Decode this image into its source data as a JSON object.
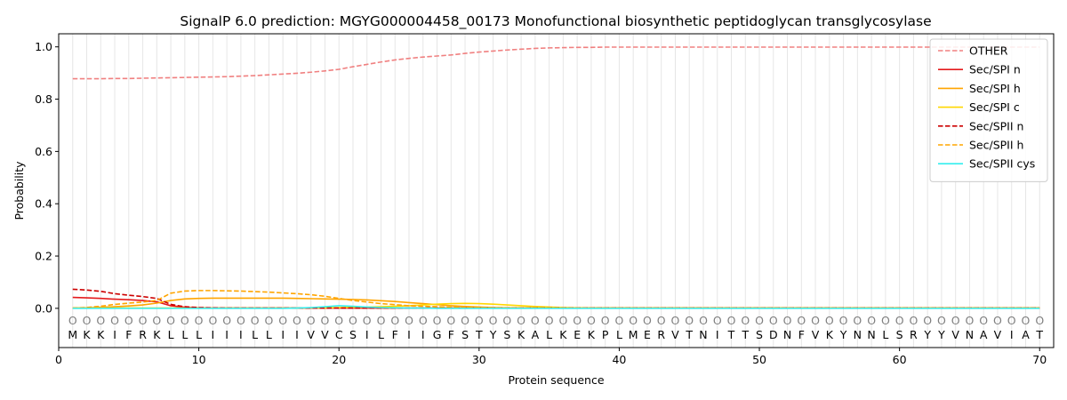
{
  "chart_data": {
    "type": "line",
    "title": "SignalP 6.0 prediction: MGYG000004458_00173 Monofunctional biosynthetic peptidoglycan transglycosylase",
    "xlabel": "Protein sequence",
    "ylabel": "Probability",
    "xlim": [
      0,
      71
    ],
    "ylim": [
      -0.15,
      1.05
    ],
    "x_ticks": [
      0,
      10,
      20,
      30,
      40,
      50,
      60,
      70
    ],
    "y_ticks": [
      0.0,
      0.2,
      0.4,
      0.6,
      0.8,
      1.0
    ],
    "x_tick_labels": [
      "0",
      "10",
      "20",
      "30",
      "40",
      "50",
      "60",
      "70"
    ],
    "y_tick_labels": [
      "0.0",
      "0.2",
      "0.4",
      "0.6",
      "0.8",
      "1.0"
    ],
    "grid": "vertical lines at each residue",
    "legend_position": "top-right",
    "sequence": [
      "M",
      "K",
      "K",
      "I",
      "F",
      "R",
      "K",
      "L",
      "L",
      "L",
      "I",
      "I",
      "I",
      "L",
      "L",
      "I",
      "I",
      "V",
      "V",
      "C",
      "S",
      "I",
      "L",
      "F",
      "I",
      "I",
      "G",
      "F",
      "S",
      "T",
      "Y",
      "S",
      "K",
      "A",
      "L",
      "K",
      "E",
      "K",
      "P",
      "L",
      "M",
      "E",
      "R",
      "V",
      "T",
      "N",
      "I",
      "T",
      "T",
      "S",
      "D",
      "N",
      "F",
      "V",
      "K",
      "Y",
      "N",
      "N",
      "L",
      "S",
      "R",
      "Y",
      "Y",
      "V",
      "N",
      "A",
      "V",
      "I",
      "A",
      "T"
    ],
    "region_marker": "O",
    "series": [
      {
        "name": "OTHER",
        "color": "#f08080",
        "dash": "dashed",
        "values": [
          0.878,
          0.878,
          0.878,
          0.879,
          0.879,
          0.88,
          0.881,
          0.882,
          0.883,
          0.884,
          0.885,
          0.886,
          0.888,
          0.89,
          0.893,
          0.896,
          0.899,
          0.903,
          0.908,
          0.914,
          0.924,
          0.933,
          0.942,
          0.95,
          0.956,
          0.961,
          0.965,
          0.969,
          0.975,
          0.98,
          0.984,
          0.988,
          0.991,
          0.994,
          0.996,
          0.997,
          0.998,
          0.998,
          0.999,
          0.999,
          0.999,
          0.999,
          0.999,
          0.999,
          0.999,
          0.999,
          0.999,
          0.999,
          0.999,
          0.999,
          0.999,
          0.999,
          0.999,
          0.999,
          0.999,
          0.999,
          0.999,
          0.999,
          0.999,
          0.999,
          0.999,
          0.999,
          0.999,
          0.999,
          0.999,
          0.999,
          0.999,
          0.999,
          0.999,
          0.999
        ]
      },
      {
        "name": "Sec/SPI n",
        "color": "#e41a1c",
        "dash": "solid",
        "values": [
          0.042,
          0.04,
          0.038,
          0.035,
          0.033,
          0.03,
          0.025,
          0.01,
          0.004,
          0.002,
          0.001,
          0.001,
          0.001,
          0.001,
          0.001,
          0.001,
          0.001,
          0.001,
          0.001,
          0.001,
          0.001,
          0.001,
          0.001,
          0.001,
          0.001,
          0.001,
          0.001,
          0.001,
          0.001,
          0.001,
          0.001,
          0.001,
          0.001,
          0.001,
          0.001,
          0.001,
          0.001,
          0.001,
          0.001,
          0.001,
          0.001,
          0.001,
          0.001,
          0.001,
          0.001,
          0.001,
          0.001,
          0.001,
          0.001,
          0.001,
          0.001,
          0.001,
          0.001,
          0.001,
          0.001,
          0.001,
          0.001,
          0.001,
          0.001,
          0.001,
          0.001,
          0.001,
          0.001,
          0.001,
          0.001,
          0.001,
          0.001,
          0.001,
          0.001,
          0.001
        ]
      },
      {
        "name": "Sec/SPI h",
        "color": "#ffa500",
        "dash": "solid",
        "values": [
          0.001,
          0.002,
          0.004,
          0.006,
          0.009,
          0.013,
          0.02,
          0.03,
          0.036,
          0.038,
          0.039,
          0.039,
          0.039,
          0.039,
          0.039,
          0.039,
          0.038,
          0.037,
          0.036,
          0.035,
          0.034,
          0.032,
          0.029,
          0.026,
          0.022,
          0.018,
          0.014,
          0.01,
          0.007,
          0.005,
          0.003,
          0.002,
          0.002,
          0.001,
          0.001,
          0.001,
          0.001,
          0.001,
          0.001,
          0.001,
          0.001,
          0.001,
          0.001,
          0.001,
          0.001,
          0.001,
          0.001,
          0.001,
          0.001,
          0.001,
          0.001,
          0.001,
          0.001,
          0.001,
          0.001,
          0.001,
          0.001,
          0.001,
          0.001,
          0.001,
          0.001,
          0.001,
          0.001,
          0.001,
          0.001,
          0.001,
          0.001,
          0.001,
          0.001,
          0.001
        ]
      },
      {
        "name": "Sec/SPI c",
        "color": "#ffd700",
        "dash": "solid",
        "values": [
          0.001,
          0.001,
          0.001,
          0.001,
          0.001,
          0.001,
          0.001,
          0.001,
          0.001,
          0.001,
          0.001,
          0.001,
          0.001,
          0.001,
          0.001,
          0.001,
          0.001,
          0.002,
          0.002,
          0.003,
          0.004,
          0.005,
          0.006,
          0.008,
          0.01,
          0.013,
          0.016,
          0.018,
          0.019,
          0.018,
          0.016,
          0.013,
          0.01,
          0.007,
          0.005,
          0.003,
          0.002,
          0.001,
          0.001,
          0.001,
          0.001,
          0.001,
          0.001,
          0.001,
          0.001,
          0.001,
          0.001,
          0.001,
          0.001,
          0.001,
          0.001,
          0.001,
          0.001,
          0.001,
          0.001,
          0.001,
          0.001,
          0.001,
          0.001,
          0.001,
          0.001,
          0.001,
          0.001,
          0.001,
          0.001,
          0.001,
          0.001,
          0.001,
          0.001,
          0.001
        ]
      },
      {
        "name": "Sec/SPII n",
        "color": "#cc0000",
        "dash": "dashed",
        "values": [
          0.073,
          0.07,
          0.065,
          0.056,
          0.05,
          0.045,
          0.038,
          0.015,
          0.006,
          0.003,
          0.002,
          0.001,
          0.001,
          0.001,
          0.001,
          0.001,
          0.001,
          0.001,
          0.001,
          0.001,
          0.001,
          0.001,
          0.001,
          0.001,
          0.001,
          0.001,
          0.001,
          0.001,
          0.001,
          0.001,
          0.001,
          0.001,
          0.001,
          0.001,
          0.001,
          0.001,
          0.001,
          0.001,
          0.001,
          0.001,
          0.001,
          0.001,
          0.001,
          0.001,
          0.001,
          0.001,
          0.001,
          0.001,
          0.001,
          0.001,
          0.001,
          0.001,
          0.001,
          0.001,
          0.001,
          0.001,
          0.001,
          0.001,
          0.001,
          0.001,
          0.001,
          0.001,
          0.001,
          0.001,
          0.001,
          0.001,
          0.001,
          0.001,
          0.001,
          0.001
        ]
      },
      {
        "name": "Sec/SPII h",
        "color": "#ffa500",
        "dash": "dashed",
        "values": [
          0.001,
          0.003,
          0.008,
          0.015,
          0.02,
          0.024,
          0.03,
          0.058,
          0.066,
          0.068,
          0.068,
          0.067,
          0.066,
          0.064,
          0.062,
          0.059,
          0.056,
          0.052,
          0.046,
          0.038,
          0.03,
          0.024,
          0.018,
          0.014,
          0.01,
          0.008,
          0.006,
          0.004,
          0.003,
          0.002,
          0.001,
          0.001,
          0.001,
          0.001,
          0.001,
          0.001,
          0.001,
          0.001,
          0.001,
          0.001,
          0.001,
          0.001,
          0.001,
          0.001,
          0.001,
          0.001,
          0.001,
          0.001,
          0.001,
          0.001,
          0.001,
          0.001,
          0.001,
          0.001,
          0.001,
          0.001,
          0.001,
          0.001,
          0.001,
          0.001,
          0.001,
          0.001,
          0.001,
          0.001,
          0.001,
          0.001,
          0.001,
          0.001,
          0.001,
          0.001
        ]
      },
      {
        "name": "Sec/SPII cys",
        "color": "#33eeee",
        "dash": "solid",
        "values": [
          0.0,
          0.0,
          0.0,
          0.0,
          0.0,
          0.0,
          0.0,
          0.0,
          0.0,
          0.0,
          0.0,
          0.0,
          0.0,
          0.0,
          0.0,
          0.0,
          0.001,
          0.003,
          0.006,
          0.01,
          0.008,
          0.005,
          0.003,
          0.002,
          0.001,
          0.001,
          0.0,
          0.0,
          0.0,
          0.0,
          0.0,
          0.0,
          0.0,
          0.0,
          0.0,
          0.0,
          0.0,
          0.0,
          0.0,
          0.0,
          0.0,
          0.0,
          0.0,
          0.0,
          0.0,
          0.0,
          0.0,
          0.0,
          0.0,
          0.0,
          0.0,
          0.0,
          0.0,
          0.0,
          0.0,
          0.0,
          0.0,
          0.0,
          0.0,
          0.0,
          0.0,
          0.0,
          0.0,
          0.0,
          0.0,
          0.0,
          0.0,
          0.0,
          0.0,
          0.0
        ]
      }
    ]
  }
}
